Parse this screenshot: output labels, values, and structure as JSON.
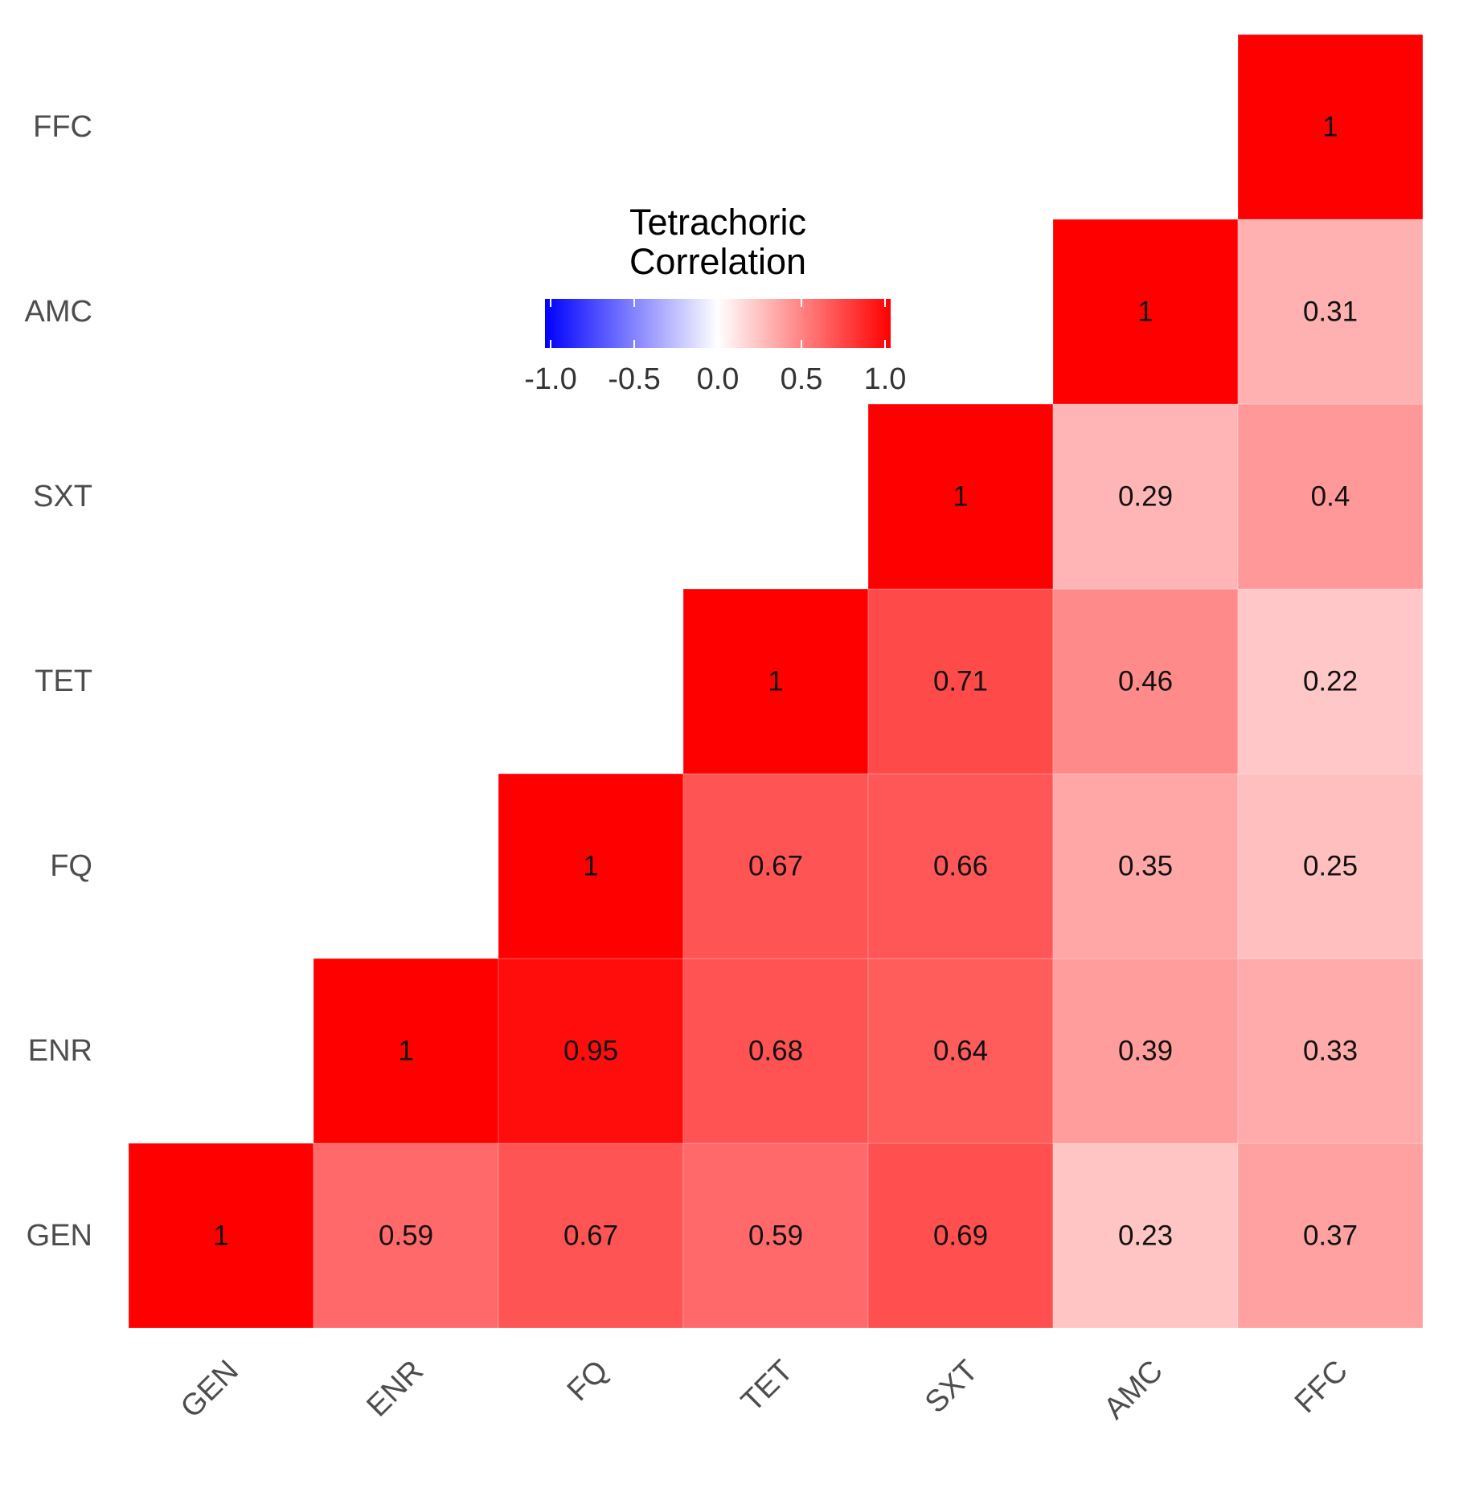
{
  "chart_data": {
    "type": "heatmap",
    "variables": [
      "GEN",
      "ENR",
      "FQ",
      "TET",
      "SXT",
      "AMC",
      "FFC"
    ],
    "x_categories": [
      "GEN",
      "ENR",
      "FQ",
      "TET",
      "SXT",
      "AMC",
      "FFC"
    ],
    "y_categories": [
      "GEN",
      "ENR",
      "FQ",
      "TET",
      "SXT",
      "AMC",
      "FFC"
    ],
    "matrix": [
      [
        1,
        0.59,
        0.67,
        0.59,
        0.69,
        0.23,
        0.37
      ],
      [
        null,
        1,
        0.95,
        0.68,
        0.64,
        0.39,
        0.33
      ],
      [
        null,
        null,
        1,
        0.67,
        0.66,
        0.35,
        0.25
      ],
      [
        null,
        null,
        null,
        1,
        0.71,
        0.46,
        0.22
      ],
      [
        null,
        null,
        null,
        null,
        1,
        0.29,
        0.4
      ],
      [
        null,
        null,
        null,
        null,
        null,
        1,
        0.31
      ],
      [
        null,
        null,
        null,
        null,
        null,
        null,
        1
      ]
    ],
    "matrix_orientation": "matrix[row][col]: row = y category (GEN at bottom), col = x category; upper triangle shown",
    "legend": {
      "title": "Tetrachoric\nCorrelation",
      "title_lines": [
        "Tetrachoric",
        "Correlation"
      ],
      "range": [
        -1.0,
        1.0
      ],
      "ticks": [
        -1.0,
        -0.5,
        0.0,
        0.5,
        1.0
      ],
      "tick_labels": [
        "-1.0",
        "-0.5",
        "0.0",
        "0.5",
        "1.0"
      ],
      "colors": {
        "low": "#0000ff",
        "mid": "#ffffff",
        "high": "#ff0000"
      },
      "placement": "top-center"
    },
    "grid": false
  }
}
